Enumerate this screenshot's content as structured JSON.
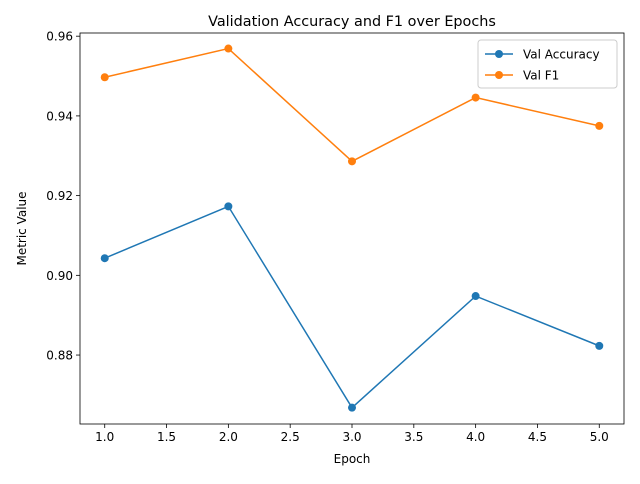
{
  "chart_data": {
    "type": "line",
    "title": "Validation Accuracy and F1 over Epochs",
    "xlabel": "Epoch",
    "ylabel": "Metric Value",
    "x": [
      1,
      2,
      3,
      4,
      5
    ],
    "xlim": [
      0.8,
      5.2
    ],
    "ylim": [
      0.8627,
      0.9608
    ],
    "xticks": [
      1.0,
      1.5,
      2.0,
      2.5,
      3.0,
      3.5,
      4.0,
      4.5,
      5.0
    ],
    "xtick_labels": [
      "1.0",
      "1.5",
      "2.0",
      "2.5",
      "3.0",
      "3.5",
      "4.0",
      "4.5",
      "5.0"
    ],
    "yticks": [
      0.88,
      0.9,
      0.92,
      0.94,
      0.96
    ],
    "ytick_labels": [
      "0.88",
      "0.90",
      "0.92",
      "0.94",
      "0.96"
    ],
    "grid": false,
    "legend_position": "top-right",
    "series": [
      {
        "name": "Val Accuracy",
        "color": "#1f77b4",
        "marker": "circle",
        "values": [
          0.9043,
          0.9173,
          0.8668,
          0.8948,
          0.8823
        ]
      },
      {
        "name": "Val F1",
        "color": "#ff7f0e",
        "marker": "circle",
        "values": [
          0.9497,
          0.9569,
          0.9286,
          0.9446,
          0.9375
        ]
      }
    ]
  }
}
